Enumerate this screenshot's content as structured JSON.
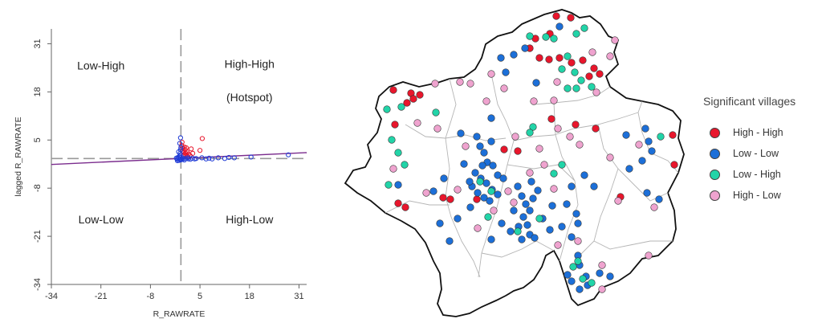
{
  "chart_data": [
    {
      "type": "scatter",
      "title": "",
      "xlabel": "R_RAWRATE",
      "ylabel": "lagged R_RAWRATE",
      "xlim": [
        -34,
        33
      ],
      "ylim": [
        -34,
        35
      ],
      "x_ticks": [
        -34,
        -21,
        -8,
        5,
        18,
        31
      ],
      "y_ticks": [
        -34,
        -21,
        -8,
        5,
        18,
        31
      ],
      "reference_lines": {
        "vertical_x": 0,
        "horizontal_y": 0,
        "style": "dashed"
      },
      "regression_line": {
        "color": "#7b2d8e",
        "points": [
          [
            -34,
            -1.6
          ],
          [
            33,
            1.6
          ]
        ]
      },
      "quadrant_labels": [
        {
          "text": "Low-High",
          "x": -21,
          "y": 24
        },
        {
          "text": "High-High",
          "x": 18,
          "y": 24.5
        },
        {
          "text": "(Hotspot)",
          "x": 18,
          "y": 15.5
        },
        {
          "text": "Low-Low",
          "x": -21,
          "y": -17.5
        },
        {
          "text": "High-Low",
          "x": 18,
          "y": -17.5
        }
      ],
      "series": [
        {
          "color": "#e8162c",
          "points": [
            [
              0.2,
              3.5
            ],
            [
              0.5,
              2.8
            ],
            [
              0.8,
              1.6
            ],
            [
              1.1,
              2.4
            ],
            [
              1.3,
              0.9
            ],
            [
              1.6,
              1.8
            ],
            [
              2.0,
              1.2
            ],
            [
              2.4,
              0.8
            ],
            [
              0.3,
              4.4
            ],
            [
              0.6,
              0.6
            ],
            [
              0.9,
              3.1
            ],
            [
              1.4,
              2.9
            ],
            [
              1.8,
              0.5
            ],
            [
              3.1,
              1.4
            ],
            [
              5.0,
              2.2
            ],
            [
              5.6,
              5.4
            ],
            [
              0.4,
              1.9
            ],
            [
              0.7,
              1.0
            ],
            [
              1.2,
              1.5
            ],
            [
              2.7,
              2.6
            ]
          ]
        },
        {
          "color": "#1f3bd6",
          "points": [
            [
              -0.3,
              -0.2
            ],
            [
              -0.6,
              0.1
            ],
            [
              -0.1,
              -0.4
            ],
            [
              0.1,
              -0.3
            ],
            [
              -0.8,
              0.3
            ],
            [
              -0.4,
              0.6
            ],
            [
              -0.2,
              1.4
            ],
            [
              -0.1,
              2.4
            ],
            [
              0.0,
              3.0
            ],
            [
              -0.3,
              4.1
            ],
            [
              -0.1,
              5.6
            ],
            [
              -0.5,
              -0.5
            ],
            [
              -1.0,
              -0.2
            ],
            [
              0.2,
              -0.2
            ],
            [
              0.6,
              -0.1
            ],
            [
              1.2,
              0.0
            ],
            [
              2.0,
              -0.1
            ],
            [
              3.0,
              0.1
            ],
            [
              4.0,
              0.0
            ],
            [
              5.5,
              0.2
            ],
            [
              6.6,
              -0.1
            ],
            [
              7.4,
              0.1
            ],
            [
              8.2,
              -0.1
            ],
            [
              9.8,
              0.2
            ],
            [
              11.5,
              0.0
            ],
            [
              12.6,
              0.3
            ],
            [
              14.0,
              0.2
            ],
            [
              18.4,
              0.4
            ],
            [
              28.2,
              1.0
            ],
            [
              1.8,
              0.2
            ],
            [
              2.5,
              -0.2
            ],
            [
              3.6,
              -0.1
            ],
            [
              -0.2,
              0.9
            ],
            [
              -0.6,
              1.8
            ],
            [
              0.4,
              0.2
            ],
            [
              -1.2,
              0.1
            ],
            [
              -0.9,
              -0.6
            ],
            [
              0.9,
              -0.4
            ]
          ]
        }
      ]
    },
    {
      "type": "scatter",
      "title": "",
      "categories": [
        "High - High",
        "Low - Low",
        "Low - High",
        "High - Low"
      ],
      "series": [
        {
          "name": "High - High",
          "color": "#e8162c",
          "points": [
            [
              693,
              20
            ],
            [
              711,
              22
            ],
            [
              667,
              48
            ],
            [
              660,
              60
            ],
            [
              672,
              72
            ],
            [
              684,
              74
            ],
            [
              697,
              72
            ],
            [
              712,
              78
            ],
            [
              726,
              75
            ],
            [
              740,
              85
            ],
            [
              734,
              95
            ],
            [
              747,
              92
            ],
            [
              685,
              42
            ],
            [
              490,
              112
            ],
            [
              512,
              116
            ],
            [
              523,
              118
            ],
            [
              515,
              123
            ],
            [
              507,
              128
            ],
            [
              492,
              155
            ],
            [
              496,
              253
            ],
            [
              505,
              258
            ],
            [
              552,
              246
            ],
            [
              561,
              248
            ],
            [
              594,
              248
            ],
            [
              628,
              186
            ],
            [
              645,
              188
            ],
            [
              717,
              155
            ],
            [
              742,
              160
            ],
            [
              687,
              148
            ],
            [
              773,
              245
            ],
            [
              838,
              168
            ],
            [
              840,
              205
            ]
          ]
        },
        {
          "name": "Low - Low",
          "color": "#1c6fd8",
          "points": [
            [
              697,
              33
            ],
            [
              668,
              103
            ],
            [
              654,
              60
            ],
            [
              640,
              68
            ],
            [
              624,
              72
            ],
            [
              630,
              90
            ],
            [
              594,
              170
            ],
            [
              598,
              182
            ],
            [
              603,
              190
            ],
            [
              607,
              202
            ],
            [
              612,
              176
            ],
            [
              592,
              215
            ],
            [
              599,
              222
            ],
            [
              606,
              228
            ],
            [
              613,
              236
            ],
            [
              620,
              218
            ],
            [
              627,
              222
            ],
            [
              588,
              232
            ],
            [
              595,
              240
            ],
            [
              603,
              246
            ],
            [
              610,
              250
            ],
            [
              601,
              206
            ],
            [
              614,
              206
            ],
            [
              585,
              226
            ],
            [
              620,
              242
            ],
            [
              645,
              232
            ],
            [
              650,
              244
            ],
            [
              655,
              254
            ],
            [
              660,
              262
            ],
            [
              652,
              270
            ],
            [
              646,
              282
            ],
            [
              657,
              280
            ],
            [
              664,
              247
            ],
            [
              670,
              237
            ],
            [
              662,
              226
            ],
            [
              640,
              262
            ],
            [
              625,
              278
            ],
            [
              636,
              288
            ],
            [
              650,
              298
            ],
            [
              660,
              292
            ],
            [
              574,
              166
            ],
            [
              586,
              258
            ],
            [
              578,
              204
            ],
            [
              548,
              278
            ],
            [
              570,
              272
            ],
            [
              612,
              147
            ],
            [
              612,
              298
            ],
            [
              540,
              238
            ],
            [
              728,
              218
            ],
            [
              740,
              232
            ],
            [
              706,
              254
            ],
            [
              718,
              266
            ],
            [
              700,
              282
            ],
            [
              720,
              278
            ],
            [
              685,
              286
            ],
            [
              712,
              295
            ],
            [
              722,
              330
            ],
            [
              730,
              344
            ],
            [
              712,
              350
            ],
            [
              722,
              360
            ],
            [
              707,
              342
            ],
            [
              747,
              340
            ],
            [
              760,
              344
            ],
            [
              804,
              160
            ],
            [
              808,
              176
            ],
            [
              800,
              200
            ],
            [
              812,
              188
            ],
            [
              806,
              240
            ],
            [
              784,
              210
            ],
            [
              780,
              168
            ],
            [
              821,
              248
            ],
            [
              712,
              232
            ],
            [
              688,
              256
            ],
            [
              666,
              296
            ],
            [
              676,
              272
            ],
            [
              553,
              222
            ],
            [
              560,
              300
            ],
            [
              496,
              230
            ],
            [
              720,
              318
            ],
            [
              732,
              355
            ]
          ]
        },
        {
          "name": "Low - High",
          "color": "#22d4a8",
          "points": [
            [
              660,
              45
            ],
            [
              680,
              46
            ],
            [
              690,
              48
            ],
            [
              718,
              42
            ],
            [
              728,
              35
            ],
            [
              707,
              70
            ],
            [
              700,
              86
            ],
            [
              716,
              90
            ],
            [
              724,
              100
            ],
            [
              718,
              110
            ],
            [
              707,
              110
            ],
            [
              737,
              108
            ],
            [
              543,
              140
            ],
            [
              500,
              133
            ],
            [
              482,
              136
            ],
            [
              488,
              174
            ],
            [
              496,
              190
            ],
            [
              504,
              205
            ],
            [
              484,
              230
            ],
            [
              664,
              158
            ],
            [
              660,
              165
            ],
            [
              598,
              226
            ],
            [
              612,
              238
            ],
            [
              608,
              270
            ],
            [
              672,
              272
            ],
            [
              645,
              288
            ],
            [
              700,
              205
            ],
            [
              720,
              325
            ],
            [
              714,
              332
            ],
            [
              726,
              347
            ],
            [
              737,
              352
            ],
            [
              823,
              170
            ],
            [
              690,
              216
            ]
          ]
        },
        {
          "name": "High - Low",
          "color": "#efa3cf",
          "points": [
            [
              573,
              102
            ],
            [
              542,
              104
            ],
            [
              665,
              126
            ],
            [
              695,
              160
            ],
            [
              710,
              170
            ],
            [
              722,
              180
            ],
            [
              694,
              102
            ],
            [
              743,
              115
            ],
            [
              738,
              65
            ],
            [
              766,
              50
            ],
            [
              760,
              70
            ],
            [
              545,
              160
            ],
            [
              520,
              153
            ],
            [
              612,
              92
            ],
            [
              580,
              182
            ],
            [
              606,
              126
            ],
            [
              586,
              104
            ],
            [
              628,
              110
            ],
            [
              642,
              170
            ],
            [
              672,
              185
            ],
            [
              678,
              205
            ],
            [
              690,
              235
            ],
            [
              660,
              215
            ],
            [
              633,
              238
            ],
            [
              640,
              252
            ],
            [
              615,
              262
            ],
            [
              595,
              284
            ],
            [
              570,
              236
            ],
            [
              695,
              305
            ],
            [
              720,
              300
            ],
            [
              750,
              330
            ],
            [
              750,
              360
            ],
            [
              770,
              250
            ],
            [
              796,
              180
            ],
            [
              815,
              258
            ],
            [
              808,
              318
            ],
            [
              760,
              196
            ],
            [
              490,
              210
            ],
            [
              531,
              240
            ],
            [
              690,
              125
            ]
          ]
        }
      ]
    }
  ],
  "legend": {
    "title": "Significant villages",
    "items": [
      {
        "label": "High - High",
        "color": "#e8162c"
      },
      {
        "label": "Low - Low",
        "color": "#1c6fd8"
      },
      {
        "label": "Low - High",
        "color": "#22d4a8"
      },
      {
        "label": "High - Low",
        "color": "#efa3cf"
      }
    ]
  }
}
